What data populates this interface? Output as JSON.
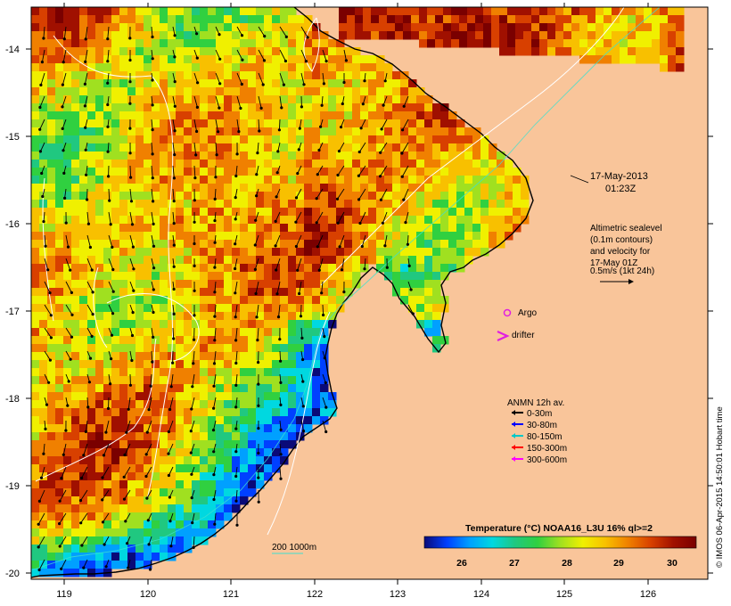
{
  "map": {
    "colors": {
      "land": "#f9c59a",
      "coast": "#000000",
      "contour": "#ffffff",
      "arrow": "#000000"
    },
    "axes": {
      "lon_ticks": [
        "119",
        "120",
        "121",
        "122",
        "123",
        "124",
        "125",
        "126"
      ],
      "lat_ticks": [
        "-14",
        "-15",
        "-16",
        "-17",
        "-18",
        "-19",
        "-20"
      ]
    },
    "timestamp": {
      "date": "17-May-2013",
      "time": "01:23Z"
    },
    "altimetry_note": {
      "lines": [
        "Altimetric sealevel",
        "(0.1m contours)",
        "and velocity for",
        "17-May 01Z",
        "0.5m/s (1kt 24h)"
      ]
    },
    "legend_symbols": {
      "argo": {
        "label": "Argo",
        "color": "#e020e0"
      },
      "drifter": {
        "label": "drifter",
        "color": "#e020e0"
      }
    },
    "anmn": {
      "title": "ANMN 12h av.",
      "items": [
        {
          "label": "0-30m",
          "color": "#000000"
        },
        {
          "label": "30-80m",
          "color": "#0000ff"
        },
        {
          "label": "80-150m",
          "color": "#00c8c8"
        },
        {
          "label": "150-300m",
          "color": "#ff0000"
        },
        {
          "label": "300-600m",
          "color": "#ff00ff"
        }
      ]
    },
    "bathy": {
      "label": "200 1000m",
      "color": "#40e0d0"
    },
    "colorbar": {
      "title": "Temperature (°C) NOAA16_L3U 16% ql>=2",
      "ticks": [
        "26",
        "27",
        "28",
        "29",
        "30"
      ],
      "stops": [
        "#0a0a78",
        "#0040ff",
        "#00a0ff",
        "#00d8e0",
        "#20c880",
        "#30d040",
        "#a0e020",
        "#f0f000",
        "#f8c000",
        "#f08000",
        "#d84000",
        "#a01000",
        "#7a0000"
      ]
    },
    "credit": "© IMOS 06-Apr-2015 14:50:01 Hobart time"
  }
}
